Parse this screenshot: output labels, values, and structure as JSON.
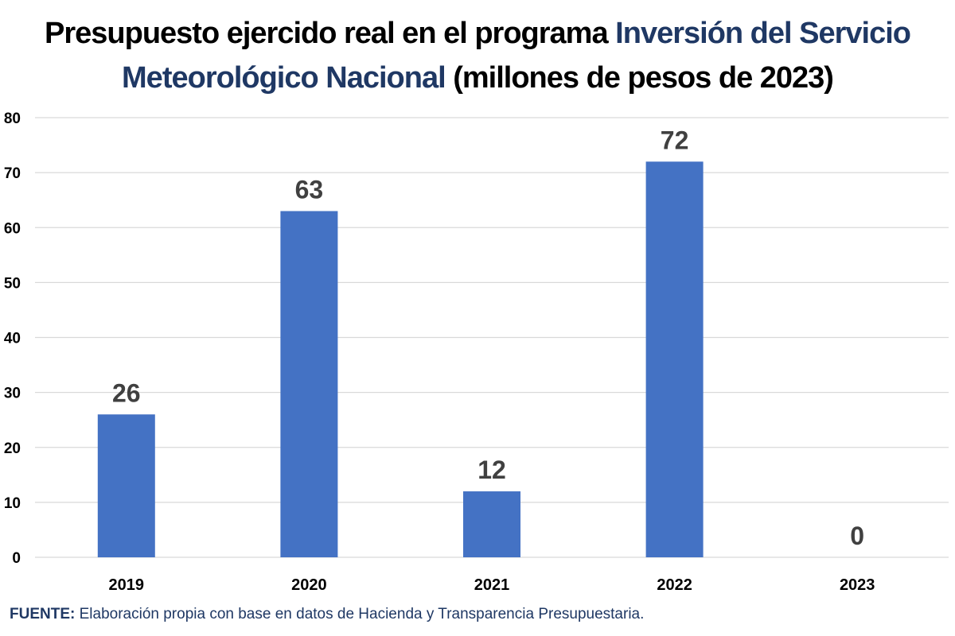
{
  "title": {
    "part1": "Presupuesto ejercido real en el programa ",
    "highlight": "Inversión del Servicio Meteorológico Nacional",
    "part2": " (millones de pesos de 2023)"
  },
  "colors": {
    "bar": "#4472c4",
    "title_highlight": "#1f3864",
    "grid": "#d9d9d9",
    "label": "#404040"
  },
  "chart_data": {
    "type": "bar",
    "categories": [
      "2019",
      "2020",
      "2021",
      "2022",
      "2023"
    ],
    "values": [
      26,
      63,
      12,
      72,
      0
    ],
    "data_labels": [
      "26",
      "63",
      "12",
      "72",
      "0"
    ],
    "y_ticks": [
      "0",
      "10",
      "20",
      "30",
      "40",
      "50",
      "60",
      "70",
      "80"
    ],
    "ylim": [
      0,
      80
    ],
    "grid": true,
    "legend": "none",
    "xlabel": "",
    "ylabel": ""
  },
  "source": {
    "label": "FUENTE:",
    "text": " Elaboración propia con base en datos de Hacienda y Transparencia Presupuestaria."
  }
}
